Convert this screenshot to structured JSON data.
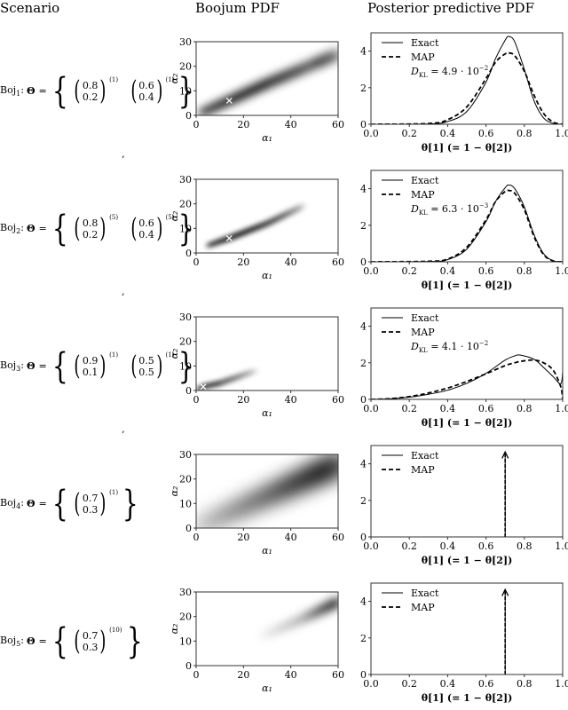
{
  "headers": {
    "scenario": "Scenario",
    "boojum": "Boojum PDF",
    "posterior": "Posterior predictive PDF"
  },
  "axes": {
    "heatmap_xlabel": "α₁",
    "heatmap_ylabel": "α₂",
    "heatmap_xticks": [
      "0",
      "20",
      "40",
      "60"
    ],
    "heatmap_yticks": [
      "0",
      "10",
      "20",
      "30"
    ],
    "pdf_xlabel": "θ[1]  (= 1 − θ[2])",
    "pdf_xticks": [
      "0.0",
      "0.2",
      "0.4",
      "0.6",
      "0.8",
      "1.0"
    ],
    "pdf_yticks": [
      "0",
      "2",
      "4"
    ]
  },
  "legend": {
    "exact": "Exact",
    "map": "MAP"
  },
  "rows": [
    {
      "label": "Boj",
      "sub": "1",
      "theta": "Θ",
      "eq": "=",
      "vectors": [
        {
          "top": "0.8",
          "bottom": "0.2",
          "sup": "(1)"
        },
        {
          "top": "0.6",
          "bottom": "0.4",
          "sup": "(1)"
        }
      ],
      "dkl": "D_KL = 4.9 · 10⁻²",
      "dkl_main": "D",
      "dkl_sub": "KL",
      "dkl_value": " = 4.9 · 10",
      "dkl_exp": "−2"
    },
    {
      "label": "Boj",
      "sub": "2",
      "theta": "Θ",
      "eq": "=",
      "vectors": [
        {
          "top": "0.8",
          "bottom": "0.2",
          "sup": "(5)"
        },
        {
          "top": "0.6",
          "bottom": "0.4",
          "sup": "(5)"
        }
      ],
      "dkl": "D_KL = 6.3 · 10⁻³",
      "dkl_main": "D",
      "dkl_sub": "KL",
      "dkl_value": " = 6.3 · 10",
      "dkl_exp": "−3"
    },
    {
      "label": "Boj",
      "sub": "3",
      "theta": "Θ",
      "eq": "=",
      "vectors": [
        {
          "top": "0.9",
          "bottom": "0.1",
          "sup": "(1)"
        },
        {
          "top": "0.5",
          "bottom": "0.5",
          "sup": "(1)"
        }
      ],
      "dkl": "D_KL = 4.1 · 10⁻²",
      "dkl_main": "D",
      "dkl_sub": "KL",
      "dkl_value": " = 4.1 · 10",
      "dkl_exp": "−2"
    },
    {
      "label": "Boj",
      "sub": "4",
      "theta": "Θ",
      "eq": "=",
      "vectors": [
        {
          "top": "0.7",
          "bottom": "0.3",
          "sup": "(1)"
        }
      ],
      "dkl": null
    },
    {
      "label": "Boj",
      "sub": "5",
      "theta": "Θ",
      "eq": "=",
      "vectors": [
        {
          "top": "0.7",
          "bottom": "0.3",
          "sup": "(10)"
        }
      ],
      "dkl": null
    }
  ],
  "chart_data": [
    {
      "type": "heatmap",
      "title": "Boojum PDF (Boj1)",
      "xlabel": "α1",
      "ylabel": "α2",
      "xlim": [
        0,
        60
      ],
      "ylim": [
        0,
        30
      ],
      "density_ridge": [
        [
          2,
          1
        ],
        [
          14,
          6
        ],
        [
          30,
          13
        ],
        [
          50,
          21
        ],
        [
          60,
          25
        ]
      ],
      "peak_marker": [
        14,
        6
      ],
      "spread": "wide",
      "colormap": "greys"
    },
    {
      "type": "heatmap",
      "title": "Boojum PDF (Boj2)",
      "xlabel": "α1",
      "ylabel": "α2",
      "xlim": [
        0,
        60
      ],
      "ylim": [
        0,
        30
      ],
      "density_ridge": [
        [
          5,
          3
        ],
        [
          14,
          6
        ],
        [
          30,
          12
        ],
        [
          45,
          19
        ]
      ],
      "peak_marker": [
        14,
        6
      ],
      "spread": "narrow",
      "colormap": "greys"
    },
    {
      "type": "heatmap",
      "title": "Boojum PDF (Boj3)",
      "xlabel": "α1",
      "ylabel": "α2",
      "xlim": [
        0,
        60
      ],
      "ylim": [
        0,
        30
      ],
      "density_ridge": [
        [
          1,
          0.5
        ],
        [
          3,
          1.5
        ],
        [
          10,
          3
        ],
        [
          25,
          8
        ]
      ],
      "peak_marker": [
        3,
        1.5
      ],
      "spread": "narrow",
      "colormap": "greys"
    },
    {
      "type": "heatmap",
      "title": "Boojum PDF (Boj4)",
      "xlabel": "α1",
      "ylabel": "α2",
      "xlim": [
        0,
        60
      ],
      "ylim": [
        0,
        30
      ],
      "density_ridge": [
        [
          0,
          0
        ],
        [
          30,
          13
        ],
        [
          60,
          26
        ]
      ],
      "peak_marker": null,
      "spread": "very wide, faint, increasing toward upper right",
      "colormap": "greys"
    },
    {
      "type": "heatmap",
      "title": "Boojum PDF (Boj5)",
      "xlabel": "α1",
      "ylabel": "α2",
      "xlim": [
        0,
        60
      ],
      "ylim": [
        0,
        30
      ],
      "density_ridge": [
        [
          28,
          12
        ],
        [
          45,
          19
        ],
        [
          60,
          26
        ]
      ],
      "peak_marker": null,
      "spread": "faint, concentrated at upper right",
      "colormap": "greys"
    },
    {
      "type": "line",
      "title": "Posterior predictive PDF (Boj1)",
      "xlabel": "θ[1] (= 1 − θ[2])",
      "ylabel": "",
      "xlim": [
        0,
        1
      ],
      "ylim": [
        0,
        5
      ],
      "x": [
        0.0,
        0.3,
        0.4,
        0.5,
        0.6,
        0.65,
        0.7,
        0.72,
        0.75,
        0.8,
        0.85,
        0.9,
        0.95,
        1.0
      ],
      "series": [
        {
          "name": "Exact",
          "style": "solid",
          "values": [
            0,
            0.02,
            0.15,
            0.7,
            2.3,
            3.6,
            4.6,
            4.8,
            4.5,
            3.0,
            1.3,
            0.35,
            0.05,
            0
          ]
        },
        {
          "name": "MAP",
          "style": "dashed",
          "values": [
            0,
            0.04,
            0.25,
            0.95,
            2.5,
            3.4,
            3.85,
            3.9,
            3.75,
            2.9,
            1.6,
            0.6,
            0.12,
            0
          ]
        }
      ],
      "annotation": "D_KL = 4.9 · 10⁻²",
      "legend_position": "upper left"
    },
    {
      "type": "line",
      "title": "Posterior predictive PDF (Boj2)",
      "xlabel": "θ[1] (= 1 − θ[2])",
      "ylabel": "",
      "xlim": [
        0,
        1
      ],
      "ylim": [
        0,
        5
      ],
      "x": [
        0.0,
        0.3,
        0.4,
        0.5,
        0.6,
        0.65,
        0.7,
        0.72,
        0.75,
        0.8,
        0.85,
        0.9,
        0.95,
        1.0
      ],
      "series": [
        {
          "name": "Exact",
          "style": "solid",
          "values": [
            0,
            0.02,
            0.12,
            0.7,
            2.2,
            3.3,
            4.05,
            4.2,
            4.0,
            3.0,
            1.5,
            0.45,
            0.06,
            0
          ]
        },
        {
          "name": "MAP",
          "style": "dashed",
          "values": [
            0,
            0.03,
            0.15,
            0.8,
            2.3,
            3.3,
            3.85,
            3.9,
            3.75,
            2.85,
            1.4,
            0.4,
            0.05,
            0
          ]
        }
      ],
      "annotation": "D_KL = 6.3 · 10⁻³",
      "legend_position": "upper left"
    },
    {
      "type": "line",
      "title": "Posterior predictive PDF (Boj3)",
      "xlabel": "θ[1] (= 1 − θ[2])",
      "ylabel": "",
      "xlim": [
        0,
        1
      ],
      "ylim": [
        0,
        5
      ],
      "x": [
        0.0,
        0.1,
        0.2,
        0.3,
        0.4,
        0.5,
        0.6,
        0.7,
        0.75,
        0.78,
        0.85,
        0.9,
        0.95,
        0.99,
        1.0
      ],
      "series": [
        {
          "name": "Exact",
          "style": "solid",
          "values": [
            0,
            0.03,
            0.12,
            0.28,
            0.5,
            0.88,
            1.42,
            2.15,
            2.38,
            2.42,
            2.2,
            1.75,
            1.25,
            0.85,
            1.5
          ]
        },
        {
          "name": "MAP",
          "style": "dashed",
          "values": [
            0,
            0.04,
            0.15,
            0.35,
            0.62,
            0.98,
            1.4,
            1.85,
            2.0,
            2.08,
            2.15,
            2.0,
            1.6,
            0.7,
            0.0
          ]
        }
      ],
      "annotation": "D_KL = 4.1 · 10⁻²",
      "legend_position": "upper left"
    },
    {
      "type": "line",
      "title": "Posterior predictive PDF (Boj4)",
      "xlabel": "θ[1] (= 1 − θ[2])",
      "ylabel": "",
      "xlim": [
        0,
        1
      ],
      "ylim": [
        0,
        5
      ],
      "series": [
        {
          "name": "Exact",
          "style": "solid",
          "delta_at": 0.7
        },
        {
          "name": "MAP",
          "style": "dashed",
          "delta_at": 0.7
        }
      ],
      "annotation": "Dirac delta (arrow) at θ[1] = 0.7",
      "legend_position": "upper left"
    },
    {
      "type": "line",
      "title": "Posterior predictive PDF (Boj5)",
      "xlabel": "θ[1] (= 1 − θ[2])",
      "ylabel": "",
      "xlim": [
        0,
        1
      ],
      "ylim": [
        0,
        5
      ],
      "series": [
        {
          "name": "Exact",
          "style": "solid",
          "delta_at": 0.7
        },
        {
          "name": "MAP",
          "style": "dashed",
          "delta_at": 0.7
        }
      ],
      "annotation": "Dirac delta (arrow) at θ[1] = 0.7",
      "legend_position": "upper left"
    }
  ]
}
